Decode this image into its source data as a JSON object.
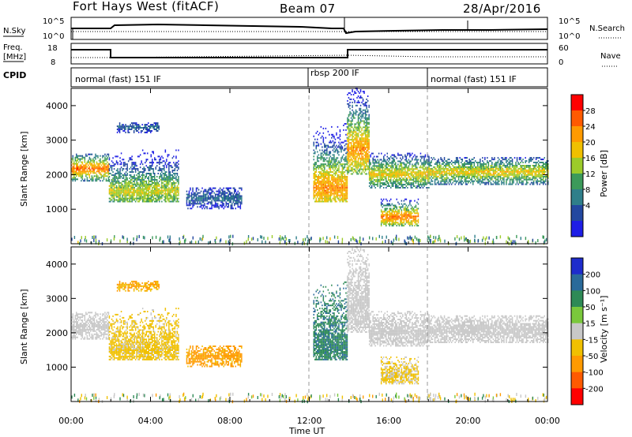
{
  "header": {
    "station": "Fort Hays West (fitACF)",
    "beam": "Beam 07",
    "date": "28/Apr/2016"
  },
  "strip_panels": {
    "nsky": {
      "label": "N.Sky",
      "left_ticks": [
        "10^5",
        "10^0"
      ],
      "right_ticks": [
        "10^5",
        "10^0"
      ],
      "right_label": "N.Search",
      "right_legend_style": "dotted"
    },
    "freq": {
      "label_line1": "Freq.",
      "label_line2": "[MHz]",
      "left_ticks": [
        "18",
        "8"
      ],
      "right_ticks": [
        "60",
        "0"
      ],
      "right_label": "Nave",
      "right_legend_style": "dotted"
    },
    "cpid": {
      "label": "CPID",
      "segments": [
        {
          "text": "normal (fast) 151 IF",
          "start_hour": 0
        },
        {
          "text": "rbsp 200 IF",
          "start_hour": 12
        },
        {
          "text": "normal (fast) 151 IF",
          "start_hour": 18
        }
      ]
    }
  },
  "panels": {
    "power": {
      "ylabel": "Slant Range [km]",
      "colorbar_label": "Power [dB]",
      "colorbar_ticks": [
        "28",
        "24",
        "20",
        "16",
        "12",
        "8",
        "4"
      ],
      "colorbar_colors": [
        "#ff0000",
        "#ff5a00",
        "#ff9a00",
        "#f0c000",
        "#9ccb2a",
        "#3c9a5a",
        "#2f7f8a",
        "#2348a0",
        "#1e1ee6"
      ]
    },
    "velocity": {
      "ylabel": "Slant Range [km]",
      "colorbar_label": "Velocity [m s⁻¹]",
      "colorbar_ticks": [
        "200",
        "100",
        "50",
        "15",
        "-15",
        "-50",
        "-100",
        "-200"
      ],
      "colorbar_colors": [
        "#1e2ccc",
        "#2a6a9a",
        "#2e8a56",
        "#7ac83c",
        "#c8c8c8",
        "#f0c000",
        "#ff9a00",
        "#ff5a00",
        "#ff0000"
      ]
    }
  },
  "chart_data": {
    "type": "heatmap",
    "xlabel": "Time UT",
    "x_ticks": [
      "00:00",
      "04:00",
      "08:00",
      "12:00",
      "16:00",
      "20:00",
      "00:00"
    ],
    "xlim_hours": [
      0,
      24
    ],
    "ylim_km": [
      0,
      4500
    ],
    "y_ticks": [
      1000,
      2000,
      3000,
      4000
    ],
    "mode_dividers_hours": [
      12,
      18
    ],
    "echo_regions": [
      {
        "t0": 0,
        "t1": 1.9,
        "r0": 1800,
        "r1": 2600,
        "peak_km": 2150,
        "power_db": 26,
        "velocity": 0
      },
      {
        "t0": 1.9,
        "t1": 5.4,
        "r0": 1200,
        "r1": 2700,
        "peak_km": 1500,
        "power_db": 18,
        "velocity": -25
      },
      {
        "t0": 2.3,
        "t1": 4.4,
        "r0": 3200,
        "r1": 3500,
        "peak_km": 3350,
        "power_db": 8,
        "velocity": -50
      },
      {
        "t0": 5.8,
        "t1": 8.6,
        "r0": 1000,
        "r1": 1600,
        "peak_km": 1300,
        "power_db": 8,
        "velocity": -60
      },
      {
        "t0": 12.2,
        "t1": 13.9,
        "r0": 1200,
        "r1": 3500,
        "peak_km": 1600,
        "power_db": 24,
        "velocity": 70
      },
      {
        "t0": 13.9,
        "t1": 15.0,
        "r0": 2000,
        "r1": 4500,
        "peak_km": 2700,
        "power_db": 24,
        "velocity": 0
      },
      {
        "t0": 15.0,
        "t1": 18.0,
        "r0": 1600,
        "r1": 2600,
        "peak_km": 2000,
        "power_db": 20,
        "velocity": 0
      },
      {
        "t0": 15.6,
        "t1": 17.5,
        "r0": 500,
        "r1": 1300,
        "peak_km": 750,
        "power_db": 26,
        "velocity": -20
      },
      {
        "t0": 18.0,
        "t1": 24.0,
        "r0": 1700,
        "r1": 2500,
        "peak_km": 2050,
        "power_db": 20,
        "velocity": 0
      }
    ]
  }
}
